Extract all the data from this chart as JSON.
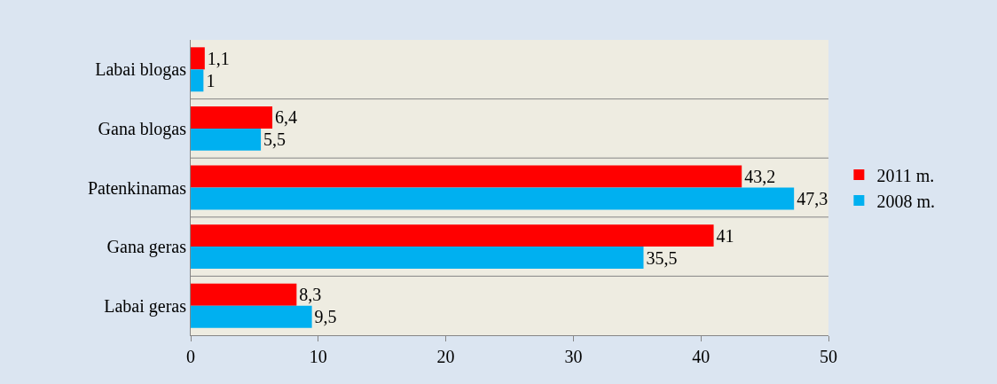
{
  "chart_data": {
    "type": "bar",
    "orientation": "horizontal",
    "categories": [
      "Labai blogas",
      "Gana blogas",
      "Patenkinamas",
      "Gana geras",
      "Labai geras"
    ],
    "series": [
      {
        "name": "2011 m.",
        "color": "#ff0000",
        "values": [
          1.1,
          6.4,
          43.2,
          41,
          8.3
        ],
        "value_labels": [
          "1,1",
          "6,4",
          "43,2",
          "41",
          "8,3"
        ]
      },
      {
        "name": "2008 m.",
        "color": "#00b0f0",
        "values": [
          1,
          5.5,
          47.3,
          35.5,
          9.5
        ],
        "value_labels": [
          "1",
          "5,5",
          "47,3",
          "35,5",
          "9,5"
        ]
      }
    ],
    "xlim": [
      0,
      50
    ],
    "xticks": [
      0,
      10,
      20,
      30,
      40,
      50
    ],
    "grid": "y",
    "legend": "right"
  }
}
